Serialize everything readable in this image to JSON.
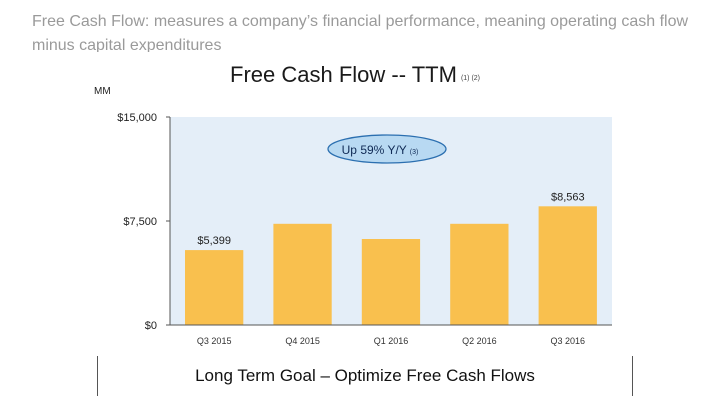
{
  "caption": "Free Cash Flow: measures a company’s financial performance, meaning operating cash flow minus capital expenditures",
  "footer": "Long Term Goal – Optimize Free Cash Flows",
  "colors": {
    "bar": "#F9C04E",
    "plot_bg": "#E4EEF8",
    "badge_fill": "#B8D9F2",
    "badge_stroke": "#2B6FB0"
  },
  "chart_data": {
    "type": "bar",
    "title": "Free Cash Flow -- TTM",
    "title_footnote": "(1) (2)",
    "unit_label": "MM",
    "categories": [
      "Q3 2015",
      "Q4 2015",
      "Q1 2016",
      "Q2 2016",
      "Q3 2016"
    ],
    "values": [
      5399,
      7300,
      6200,
      7300,
      8563
    ],
    "data_labels": [
      "$5,399",
      "",
      "",
      "",
      "$8,563"
    ],
    "ylim": [
      0,
      15000
    ],
    "yticks": [
      0,
      7500,
      15000
    ],
    "ytick_labels": [
      "$0",
      "$7,500",
      "$15,000"
    ],
    "grid": false,
    "annotation": {
      "text": "Up 59% Y/Y",
      "footnote": "(3)"
    }
  }
}
